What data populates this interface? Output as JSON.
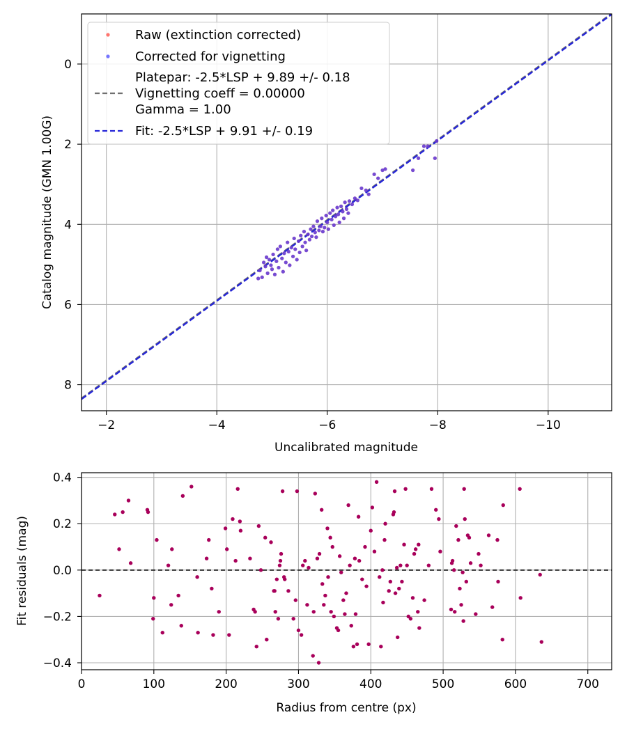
{
  "chart_data": [
    {
      "type": "scatter",
      "xlabel": "Uncalibrated magnitude",
      "ylabel": "Catalog magnitude (GMN 1.00G)",
      "xlim": [
        -1.55,
        -11.15
      ],
      "ylim": [
        -1.25,
        8.65
      ],
      "y_inverted": true,
      "x_inverted": true,
      "xticks": [
        -2,
        -4,
        -6,
        -8,
        -10
      ],
      "xtick_labels": [
        "−2",
        "−4",
        "−6",
        "−8",
        "−10"
      ],
      "yticks": [
        0,
        2,
        4,
        6,
        8
      ],
      "ytick_labels": [
        "0",
        "2",
        "4",
        "6",
        "8"
      ],
      "grid": true,
      "legend_position": "top-left",
      "legend": {
        "raw": "Raw (extinction corrected)",
        "corrected": "Corrected for vignetting",
        "platepar_1": "Platepar: -2.5*LSP + 9.89 +/- 0.18",
        "platepar_2": "Vignetting coeff = 0.00000",
        "platepar_3": "Gamma = 1.00",
        "fit": "Fit: -2.5*LSP + 9.91 +/- 0.19"
      },
      "colors": {
        "raw": "#ff3b30",
        "corrected": "#3a3aff",
        "overlap": "#5a10d8",
        "platepar": "#707070",
        "fit": "#2525d8"
      },
      "lines": [
        {
          "name": "platepar",
          "slope": 1,
          "intercept": 9.89
        },
        {
          "name": "fit",
          "slope": 1,
          "intercept": 9.91
        }
      ],
      "points": [
        [
          -4.75,
          5.35
        ],
        [
          -4.78,
          5.15
        ],
        [
          -4.82,
          5.32
        ],
        [
          -4.85,
          4.95
        ],
        [
          -4.88,
          5.05
        ],
        [
          -4.9,
          4.82
        ],
        [
          -4.92,
          5.22
        ],
        [
          -4.95,
          4.88
        ],
        [
          -4.98,
          5.02
        ],
        [
          -5.0,
          5.12
        ],
        [
          -5.02,
          4.75
        ],
        [
          -5.05,
          5.25
        ],
        [
          -5.08,
          4.92
        ],
        [
          -5.1,
          4.62
        ],
        [
          -5.12,
          5.08
        ],
        [
          -5.15,
          4.55
        ],
        [
          -5.18,
          4.85
        ],
        [
          -5.2,
          5.18
        ],
        [
          -5.22,
          4.72
        ],
        [
          -5.25,
          4.95
        ],
        [
          -5.28,
          4.45
        ],
        [
          -5.3,
          4.68
        ],
        [
          -5.32,
          5.02
        ],
        [
          -5.35,
          4.58
        ],
        [
          -5.38,
          4.8
        ],
        [
          -5.4,
          4.35
        ],
        [
          -5.42,
          4.62
        ],
        [
          -5.45,
          4.88
        ],
        [
          -5.48,
          4.42
        ],
        [
          -5.5,
          4.7
        ],
        [
          -5.52,
          4.28
        ],
        [
          -5.55,
          4.55
        ],
        [
          -5.58,
          4.18
        ],
        [
          -5.6,
          4.45
        ],
        [
          -5.62,
          4.65
        ],
        [
          -5.65,
          4.25
        ],
        [
          -5.68,
          4.38
        ],
        [
          -5.7,
          4.12
        ],
        [
          -5.72,
          4.3
        ],
        [
          -5.75,
          4.05
        ],
        [
          -5.78,
          4.2
        ],
        [
          -5.8,
          4.32
        ],
        [
          -5.82,
          3.92
        ],
        [
          -5.85,
          4.15
        ],
        [
          -5.88,
          4.05
        ],
        [
          -5.9,
          3.85
        ],
        [
          -5.92,
          4.18
        ],
        [
          -5.95,
          4.08
        ],
        [
          -5.98,
          3.78
        ],
        [
          -6.0,
          3.95
        ],
        [
          -6.02,
          4.12
        ],
        [
          -6.05,
          3.72
        ],
        [
          -6.08,
          3.88
        ],
        [
          -6.1,
          3.65
        ],
        [
          -6.12,
          4.02
        ],
        [
          -6.15,
          3.8
        ],
        [
          -6.18,
          3.58
        ],
        [
          -6.2,
          3.75
        ],
        [
          -6.22,
          3.95
        ],
        [
          -6.25,
          3.55
        ],
        [
          -6.28,
          3.68
        ],
        [
          -6.3,
          3.85
        ],
        [
          -6.32,
          3.45
        ],
        [
          -6.35,
          3.62
        ],
        [
          -6.38,
          3.72
        ],
        [
          -6.4,
          3.42
        ],
        [
          -6.45,
          3.5
        ],
        [
          -6.5,
          3.35
        ],
        [
          -6.55,
          3.4
        ],
        [
          -6.62,
          3.1
        ],
        [
          -6.7,
          3.15
        ],
        [
          -6.75,
          3.25
        ],
        [
          -6.85,
          2.75
        ],
        [
          -6.92,
          2.85
        ],
        [
          -7.0,
          2.65
        ],
        [
          -7.05,
          2.62
        ],
        [
          -7.55,
          2.65
        ],
        [
          -7.65,
          2.35
        ],
        [
          -7.75,
          2.05
        ],
        [
          -7.82,
          2.05
        ],
        [
          -7.95,
          2.35
        ],
        [
          -7.98,
          1.92
        ]
      ]
    },
    {
      "type": "scatter",
      "xlabel": "Radius from centre (px)",
      "ylabel": "Fit residuals (mag)",
      "xlim": [
        0,
        733
      ],
      "ylim": [
        -0.43,
        0.42
      ],
      "xticks": [
        0,
        100,
        200,
        300,
        400,
        500,
        600,
        700
      ],
      "xtick_labels": [
        "0",
        "100",
        "200",
        "300",
        "400",
        "500",
        "600",
        "700"
      ],
      "yticks": [
        0.4,
        0.2,
        0.0,
        -0.2,
        -0.4
      ],
      "ytick_labels": [
        "0.4",
        "0.2",
        "0.0",
        "−0.2",
        "−0.4"
      ],
      "grid": true,
      "zero_line": 0.0,
      "colors": {
        "points": "#a8005a",
        "zero_line": "#333333"
      },
      "points": [
        [
          25,
          -0.11
        ],
        [
          46,
          0.24
        ],
        [
          52,
          0.09
        ],
        [
          57,
          0.25
        ],
        [
          65,
          0.3
        ],
        [
          68,
          0.03
        ],
        [
          91,
          0.26
        ],
        [
          92,
          0.25
        ],
        [
          99,
          -0.21
        ],
        [
          100,
          -0.12
        ],
        [
          104,
          0.13
        ],
        [
          112,
          -0.27
        ],
        [
          120,
          0.02
        ],
        [
          124,
          -0.15
        ],
        [
          125,
          0.09
        ],
        [
          134,
          -0.11
        ],
        [
          138,
          -0.24
        ],
        [
          140,
          0.32
        ],
        [
          152,
          0.36
        ],
        [
          160,
          -0.03
        ],
        [
          161,
          -0.27
        ],
        [
          173,
          0.05
        ],
        [
          176,
          0.13
        ],
        [
          180,
          -0.08
        ],
        [
          182,
          -0.28
        ],
        [
          190,
          -0.18
        ],
        [
          199,
          0.18
        ],
        [
          201,
          0.09
        ],
        [
          204,
          -0.28
        ],
        [
          209,
          0.22
        ],
        [
          213,
          0.04
        ],
        [
          216,
          0.35
        ],
        [
          219,
          0.21
        ],
        [
          220,
          0.17
        ],
        [
          233,
          0.05
        ],
        [
          238,
          -0.17
        ],
        [
          240,
          -0.18
        ],
        [
          242,
          -0.33
        ],
        [
          245,
          0.19
        ],
        [
          248,
          0.0
        ],
        [
          254,
          0.14
        ],
        [
          256,
          -0.3
        ],
        [
          262,
          0.12
        ],
        [
          266,
          -0.09
        ],
        [
          267,
          -0.09
        ],
        [
          268,
          -0.18
        ],
        [
          270,
          -0.04
        ],
        [
          272,
          -0.21
        ],
        [
          274,
          0.02
        ],
        [
          275,
          0.04
        ],
        [
          276,
          0.07
        ],
        [
          278,
          0.34
        ],
        [
          280,
          -0.03
        ],
        [
          281,
          -0.04
        ],
        [
          286,
          -0.09
        ],
        [
          293,
          -0.21
        ],
        [
          296,
          -0.13
        ],
        [
          298,
          0.34
        ],
        [
          300,
          -0.26
        ],
        [
          304,
          -0.28
        ],
        [
          306,
          0.02
        ],
        [
          309,
          0.04
        ],
        [
          312,
          -0.15
        ],
        [
          314,
          0.01
        ],
        [
          320,
          -0.37
        ],
        [
          321,
          -0.18
        ],
        [
          323,
          0.33
        ],
        [
          326,
          0.05
        ],
        [
          328,
          -0.4
        ],
        [
          329,
          0.07
        ],
        [
          332,
          0.26
        ],
        [
          333,
          -0.06
        ],
        [
          335,
          -0.15
        ],
        [
          337,
          -0.11
        ],
        [
          340,
          0.18
        ],
        [
          341,
          -0.03
        ],
        [
          344,
          0.14
        ],
        [
          345,
          -0.18
        ],
        [
          347,
          0.1
        ],
        [
          349,
          -0.2
        ],
        [
          353,
          -0.25
        ],
        [
          355,
          -0.26
        ],
        [
          357,
          0.06
        ],
        [
          359,
          -0.01
        ],
        [
          362,
          -0.13
        ],
        [
          364,
          -0.19
        ],
        [
          366,
          -0.1
        ],
        [
          369,
          0.28
        ],
        [
          371,
          0.02
        ],
        [
          373,
          -0.24
        ],
        [
          376,
          -0.33
        ],
        [
          378,
          0.05
        ],
        [
          379,
          -0.19
        ],
        [
          381,
          -0.32
        ],
        [
          383,
          0.23
        ],
        [
          384,
          0.04
        ],
        [
          388,
          -0.04
        ],
        [
          392,
          0.1
        ],
        [
          394,
          -0.07
        ],
        [
          397,
          -0.32
        ],
        [
          400,
          0.17
        ],
        [
          402,
          0.27
        ],
        [
          405,
          0.08
        ],
        [
          408,
          0.38
        ],
        [
          412,
          -0.03
        ],
        [
          414,
          -0.33
        ],
        [
          416,
          0.0
        ],
        [
          417,
          -0.14
        ],
        [
          419,
          0.13
        ],
        [
          420,
          0.2
        ],
        [
          425,
          -0.09
        ],
        [
          427,
          -0.05
        ],
        [
          431,
          0.24
        ],
        [
          432,
          0.25
        ],
        [
          433,
          0.34
        ],
        [
          434,
          -0.1
        ],
        [
          436,
          0.01
        ],
        [
          437,
          -0.29
        ],
        [
          439,
          -0.08
        ],
        [
          441,
          0.02
        ],
        [
          443,
          -0.05
        ],
        [
          446,
          0.11
        ],
        [
          448,
          0.35
        ],
        [
          450,
          0.02
        ],
        [
          452,
          -0.2
        ],
        [
          455,
          -0.21
        ],
        [
          458,
          -0.12
        ],
        [
          460,
          0.07
        ],
        [
          462,
          0.09
        ],
        [
          465,
          -0.18
        ],
        [
          466,
          0.11
        ],
        [
          467,
          -0.25
        ],
        [
          474,
          -0.13
        ],
        [
          480,
          0.02
        ],
        [
          484,
          0.35
        ],
        [
          490,
          0.26
        ],
        [
          494,
          0.22
        ],
        [
          496,
          0.08
        ],
        [
          511,
          -0.17
        ],
        [
          512,
          0.03
        ],
        [
          513,
          0.04
        ],
        [
          515,
          0.0
        ],
        [
          516,
          -0.18
        ],
        [
          518,
          0.19
        ],
        [
          521,
          0.13
        ],
        [
          523,
          -0.08
        ],
        [
          525,
          -0.15
        ],
        [
          527,
          -0.01
        ],
        [
          528,
          -0.22
        ],
        [
          529,
          0.35
        ],
        [
          530,
          0.22
        ],
        [
          532,
          -0.05
        ],
        [
          534,
          0.15
        ],
        [
          536,
          0.14
        ],
        [
          538,
          0.03
        ],
        [
          545,
          -0.19
        ],
        [
          549,
          0.07
        ],
        [
          552,
          0.02
        ],
        [
          563,
          0.15
        ],
        [
          568,
          -0.16
        ],
        [
          575,
          0.13
        ],
        [
          576,
          -0.05
        ],
        [
          582,
          -0.3
        ],
        [
          583,
          0.28
        ],
        [
          606,
          0.35
        ],
        [
          607,
          -0.12
        ],
        [
          634,
          -0.02
        ],
        [
          636,
          -0.31
        ]
      ]
    }
  ]
}
